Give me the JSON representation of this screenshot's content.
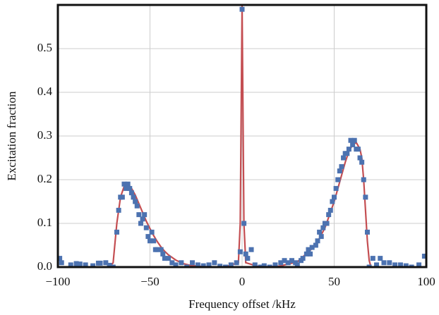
{
  "chart_data": {
    "type": "scatter",
    "xlabel": "Frequency offset /kHz",
    "ylabel": "Excitation fraction",
    "xlim": [
      -100,
      100
    ],
    "ylim": [
      0,
      0.6
    ],
    "xticks": [
      {
        "value": -100,
        "label": "−100"
      },
      {
        "value": -50,
        "label": "−50"
      },
      0,
      50,
      100
    ],
    "yticks": [
      {
        "value": 0,
        "label": "0.0"
      },
      0.1,
      0.2,
      0.3,
      0.4,
      0.5
    ],
    "grid": true,
    "series": [
      {
        "type": "scatter",
        "color": "#4c72b0",
        "x": [
          -99,
          -98,
          -93,
          -90,
          -88,
          -85,
          -81,
          -78,
          -77,
          -74,
          -72,
          -70,
          -68,
          -67,
          -66,
          -65,
          -64,
          -63,
          -62,
          -61,
          -60,
          -59,
          -58,
          -57,
          -56,
          -55,
          -54,
          -53,
          -52,
          -51,
          -50,
          -49,
          -48,
          -47,
          -46,
          -44,
          -43,
          -42,
          -40,
          -38,
          -36,
          -33,
          -30,
          -27,
          -24,
          -21,
          -18,
          -15,
          -12,
          -9,
          -6,
          -3,
          -1,
          0,
          1,
          2,
          3,
          5,
          7,
          10,
          12,
          15,
          18,
          21,
          23,
          25,
          27,
          29,
          30,
          32,
          33,
          35,
          36,
          37,
          38,
          40,
          41,
          42,
          43,
          44,
          45,
          46,
          47,
          48,
          49,
          50,
          51,
          52,
          53,
          54,
          55,
          56,
          57,
          58,
          59,
          60,
          61,
          62,
          63,
          64,
          65,
          66,
          67,
          68,
          69,
          71,
          73,
          75,
          77,
          80,
          83,
          86,
          89,
          92,
          96,
          99
        ],
        "values": [
          0.02,
          0.01,
          0.005,
          0.008,
          0.007,
          0.005,
          0.003,
          0.009,
          0.009,
          0.01,
          0.004,
          0.0,
          0.08,
          0.13,
          0.16,
          0.16,
          0.19,
          0.18,
          0.19,
          0.18,
          0.17,
          0.16,
          0.15,
          0.14,
          0.12,
          0.1,
          0.11,
          0.12,
          0.09,
          0.07,
          0.06,
          0.08,
          0.06,
          0.04,
          0.04,
          0.04,
          0.03,
          0.02,
          0.02,
          0.01,
          0.005,
          0.01,
          0.0,
          0.01,
          0.005,
          0.003,
          0.005,
          0.01,
          0.002,
          0.0,
          0.005,
          0.01,
          0.035,
          0.59,
          0.1,
          0.03,
          0.02,
          0.04,
          0.005,
          0.0,
          0.003,
          0.0,
          0.005,
          0.01,
          0.015,
          0.01,
          0.015,
          0.01,
          0.005,
          0.015,
          0.02,
          0.03,
          0.04,
          0.03,
          0.045,
          0.05,
          0.06,
          0.08,
          0.07,
          0.09,
          0.1,
          0.1,
          0.12,
          0.13,
          0.15,
          0.16,
          0.18,
          0.2,
          0.22,
          0.23,
          0.25,
          0.26,
          0.26,
          0.27,
          0.29,
          0.28,
          0.29,
          0.27,
          0.27,
          0.25,
          0.24,
          0.2,
          0.16,
          0.08,
          0.0,
          0.02,
          0.005,
          0.02,
          0.01,
          0.01,
          0.005,
          0.005,
          0.003,
          0.0,
          0.005,
          0.025
        ]
      },
      {
        "type": "line",
        "color": "#c44e52",
        "x": [
          -100,
          -72,
          -70,
          -68,
          -66,
          -64,
          -62,
          -60,
          -58,
          -56,
          -54,
          -52,
          -50,
          -48,
          -46,
          -44,
          -42,
          -40,
          -36,
          -32,
          -28,
          -24,
          -20,
          -10,
          -2,
          -1,
          0,
          1,
          2,
          10,
          20,
          30,
          40,
          45,
          50,
          52,
          54,
          56,
          58,
          60,
          62,
          64,
          65,
          66,
          67,
          68,
          69,
          70,
          100
        ],
        "values": [
          0,
          0,
          0.01,
          0.1,
          0.16,
          0.185,
          0.19,
          0.18,
          0.165,
          0.145,
          0.125,
          0.105,
          0.088,
          0.072,
          0.058,
          0.046,
          0.036,
          0.028,
          0.016,
          0.008,
          0.004,
          0.002,
          0.001,
          0,
          0.01,
          0.1,
          0.6,
          0.1,
          0.01,
          0,
          0.002,
          0.012,
          0.05,
          0.09,
          0.15,
          0.18,
          0.21,
          0.24,
          0.265,
          0.28,
          0.285,
          0.27,
          0.25,
          0.2,
          0.13,
          0.06,
          0.015,
          0,
          0
        ]
      }
    ]
  }
}
